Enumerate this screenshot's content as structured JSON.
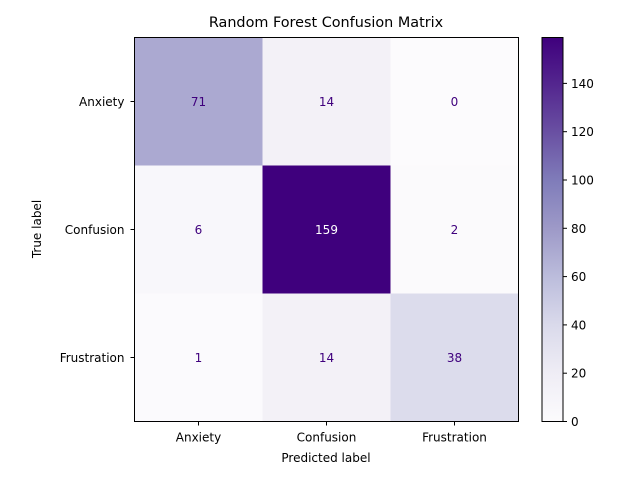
{
  "chart_data": {
    "type": "heatmap",
    "title": "Random Forest Confusion Matrix",
    "xlabel": "Predicted label",
    "ylabel": "True label",
    "x_categories": [
      "Anxiety",
      "Confusion",
      "Frustration"
    ],
    "y_categories": [
      "Anxiety",
      "Confusion",
      "Frustration"
    ],
    "matrix": [
      [
        71,
        14,
        0
      ],
      [
        6,
        159,
        2
      ],
      [
        1,
        14,
        38
      ]
    ],
    "colormap": "Purples",
    "colorbar": {
      "min": 0,
      "max": 159,
      "ticks": [
        0,
        20,
        40,
        60,
        80,
        100,
        120,
        140
      ]
    },
    "text_colors": {
      "on_light": "#3f007d",
      "on_dark": "#ffffff"
    }
  }
}
